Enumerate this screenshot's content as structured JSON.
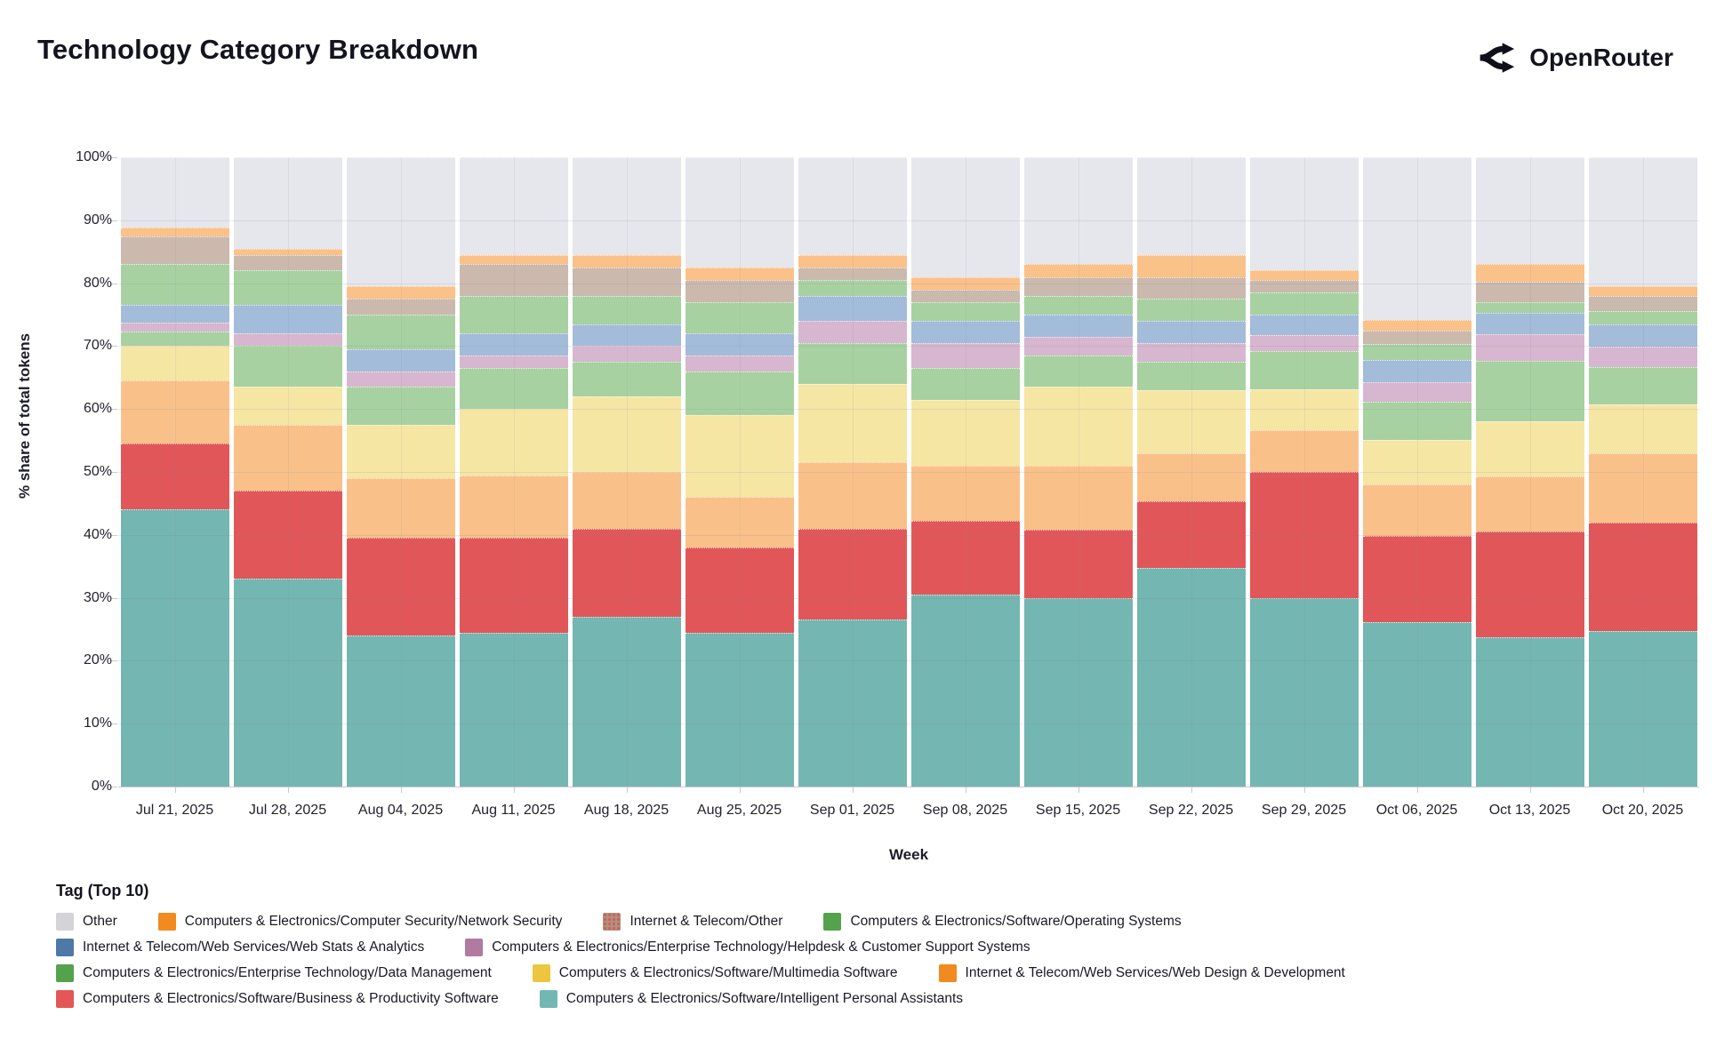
{
  "header": {
    "title": "Technology Category Breakdown",
    "brand": "OpenRouter"
  },
  "chart_data": {
    "type": "bar",
    "stacking": "percent",
    "title": "Technology Category Breakdown",
    "xlabel": "Week",
    "ylabel": "% share of total tokens",
    "ylim": [
      0,
      100
    ],
    "grid": true,
    "legend_position": "bottom",
    "ytick_labels": [
      "0%",
      "10%",
      "20%",
      "30%",
      "40%",
      "50%",
      "60%",
      "70%",
      "80%",
      "90%",
      "100%"
    ],
    "categories": [
      "Jul 21, 2025",
      "Jul 28, 2025",
      "Aug 04, 2025",
      "Aug 11, 2025",
      "Aug 18, 2025",
      "Aug 25, 2025",
      "Sep 01, 2025",
      "Sep 08, 2025",
      "Sep 15, 2025",
      "Sep 22, 2025",
      "Sep 29, 2025",
      "Oct 06, 2025",
      "Oct 13, 2025",
      "Oct 20, 2025"
    ],
    "series": [
      {
        "key": "personal_assistants",
        "label": "Computers & Electronics/Software/Intelligent Personal Assistants",
        "bar_color": "#74b6b1",
        "swatch_color": "#72b7b2",
        "pattern": "none",
        "values": [
          44,
          33,
          24,
          24.5,
          27,
          24.5,
          26.5,
          30.5,
          30,
          34.7,
          30,
          26.1,
          23.7,
          24.7
        ]
      },
      {
        "key": "business_productivity",
        "label": "Computers & Electronics/Software/Business & Productivity Software",
        "bar_color": "#e15759",
        "swatch_color": "#e45756",
        "pattern": "none",
        "values": [
          10.5,
          14,
          15.5,
          15,
          14,
          13.5,
          14.5,
          11.7,
          10.8,
          10.7,
          20,
          13.7,
          16.8,
          17.3
        ]
      },
      {
        "key": "web_design",
        "label": "Internet & Telecom/Web Services/Web Design & Development",
        "bar_color": "#f9c189",
        "swatch_color": "#f18b20",
        "pattern": "none",
        "values": [
          10,
          10.5,
          9.5,
          10,
          9,
          8,
          10.5,
          8.8,
          10.2,
          7.6,
          6.6,
          8.2,
          8.8,
          11
        ]
      },
      {
        "key": "multimedia",
        "label": "Computers & Electronics/Software/Multimedia Software",
        "bar_color": "#f5e6a4",
        "swatch_color": "#ecc63f",
        "pattern": "none",
        "values": [
          5.5,
          6,
          8.5,
          10.5,
          12,
          13,
          12.5,
          10.5,
          12.5,
          10,
          6.6,
          7.1,
          8.7,
          7.7
        ]
      },
      {
        "key": "data_management",
        "label": "Computers & Electronics/Enterprise Technology/Data Management",
        "bar_color": "#a8d1a2",
        "swatch_color": "#55a24c",
        "pattern": "none",
        "values": [
          2.3,
          6.5,
          6,
          6.5,
          5.5,
          7,
          6.5,
          5,
          5,
          4.5,
          6,
          6,
          9.7,
          6
        ]
      },
      {
        "key": "helpdesk",
        "label": "Computers & Electronics/Enterprise Technology/Helpdesk & Customer Support Systems",
        "bar_color": "#d6b7cf",
        "swatch_color": "#b07aa1",
        "pattern": "dots-yellow",
        "values": [
          1.5,
          2,
          2.5,
          2,
          2.5,
          2.5,
          3.5,
          4,
          3,
          3,
          2.6,
          3.2,
          4.2,
          3.2
        ]
      },
      {
        "key": "web_stats",
        "label": "Internet & Telecom/Web Services/Web Stats & Analytics",
        "bar_color": "#a3bcd9",
        "swatch_color": "#4e79a7",
        "pattern": "none",
        "values": [
          2.8,
          4.5,
          3.5,
          3.5,
          3.5,
          3.5,
          4,
          3.5,
          3.5,
          3.5,
          3.2,
          3.5,
          3.4,
          3.6
        ]
      },
      {
        "key": "operating_systems",
        "label": "Computers & Electronics/Software/Operating Systems",
        "bar_color": "#a8d1a2",
        "swatch_color": "#55a24c",
        "pattern": "none",
        "values": [
          6.4,
          5.5,
          5.5,
          6,
          4.5,
          5,
          2.5,
          3,
          3,
          3.5,
          3.5,
          2.5,
          1.7,
          2
        ]
      },
      {
        "key": "internet_other",
        "label": "Internet & Telecom/Other",
        "bar_color": "#cbb9ae",
        "swatch_color": "#a89387",
        "pattern": "dots-red",
        "swatch_pattern": "dots-red",
        "values": [
          4.5,
          2.5,
          2.5,
          5,
          4.5,
          3.5,
          2,
          2,
          3,
          3.5,
          2,
          2.1,
          3.2,
          2.5
        ]
      },
      {
        "key": "network_security",
        "label": "Computers & Electronics/Computer Security/Network Security",
        "bar_color": "#fac189",
        "swatch_color": "#f18b20",
        "pattern": "none",
        "values": [
          1.3,
          1,
          2,
          1.5,
          2,
          2,
          2,
          2,
          2,
          3.5,
          1.5,
          1.8,
          2.9,
          1.5
        ]
      },
      {
        "key": "other",
        "label": "Other",
        "bar_color": "#e6e6ed",
        "swatch_color": "#d3d3d8",
        "pattern": "none",
        "values": [
          11.2,
          14.5,
          20.5,
          15.5,
          15.5,
          17.5,
          15.5,
          19,
          17,
          15.5,
          18,
          25.8,
          16.9,
          20.5
        ]
      }
    ]
  },
  "legend": {
    "title": "Tag (Top 10)",
    "rows": [
      [
        "other",
        "network_security",
        "internet_other",
        "operating_systems"
      ],
      [
        "web_stats",
        "helpdesk"
      ],
      [
        "data_management",
        "multimedia",
        "web_design"
      ],
      [
        "business_productivity",
        "personal_assistants"
      ]
    ]
  }
}
